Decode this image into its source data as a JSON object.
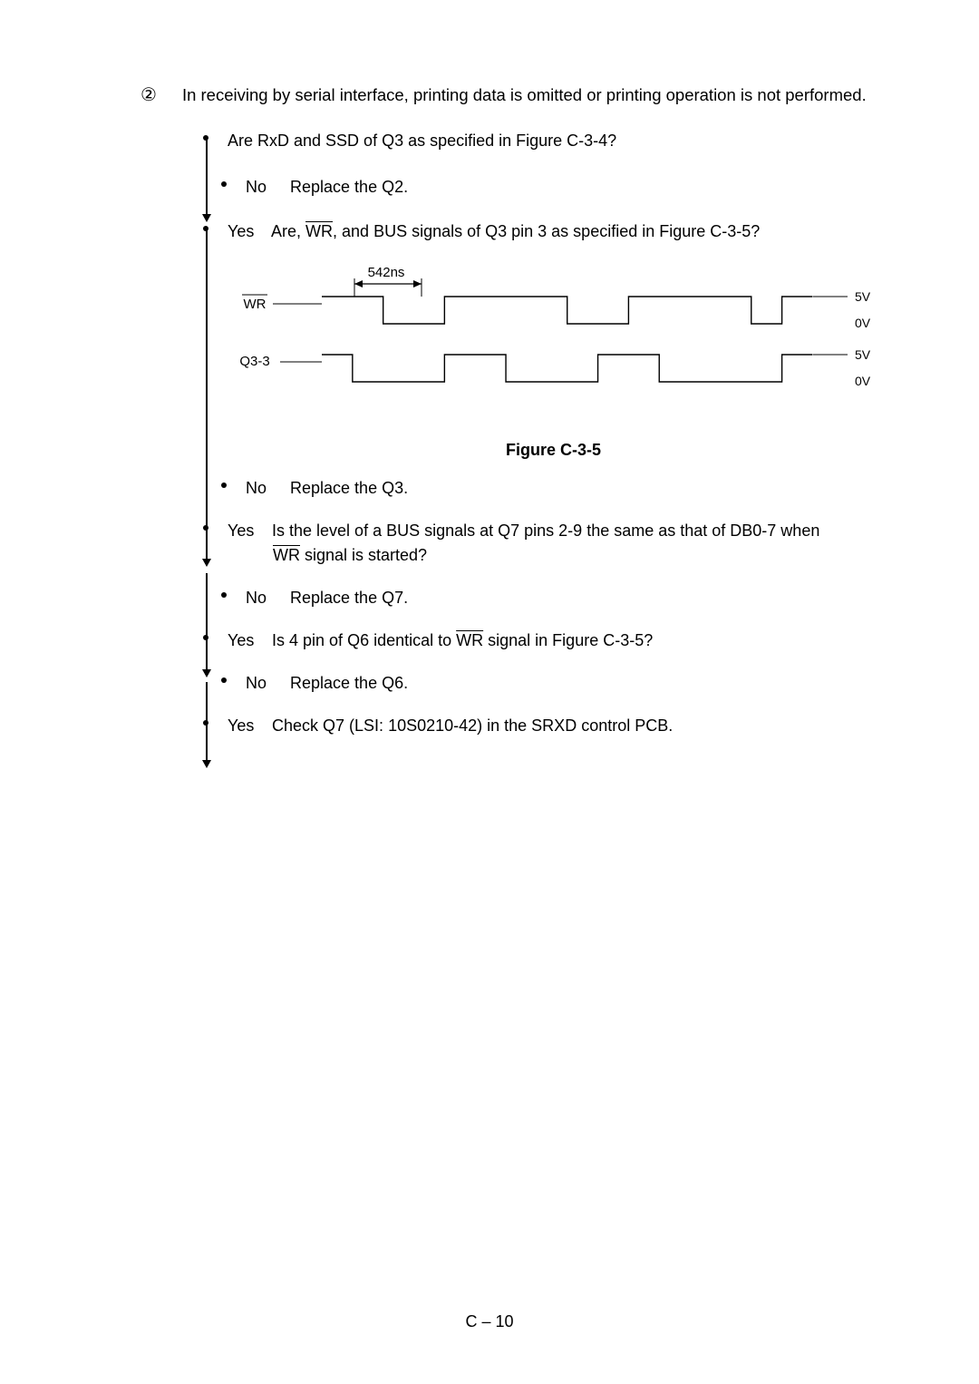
{
  "item_number": "②",
  "header": "In receiving by serial interface, printing data is omitted or printing operation is not performed.",
  "steps": {
    "q1": "Are RxD and SSD of Q3 as specified in Figure C-3-4?",
    "no1_label": "No",
    "no1_action": "Replace the Q2.",
    "yes1_label": "Yes",
    "yes1_text_before": "Are, ",
    "yes1_wr": "WR",
    "yes1_text_after": ", and BUS signals of Q3 pin 3 as specified in Figure C-3-5?",
    "no2_label": "No",
    "no2_action": "Replace the Q3.",
    "yes2_label": "Yes",
    "yes2_line1": "Is the level of a BUS signals at Q7 pins 2-9 the same as that of DB0-7 when",
    "yes2_wr": "WR",
    "yes2_line2_after": " signal is started?",
    "no3_label": "No",
    "no3_action": "Replace the Q7.",
    "yes3_label": "Yes",
    "yes3_before": "Is 4 pin of Q6 identical to ",
    "yes3_wr": "WR",
    "yes3_after": " signal in Figure C-3-5?",
    "no4_label": "No",
    "no4_action": "Replace the Q6.",
    "yes4_label": "Yes",
    "yes4_action": "Check Q7 (LSI: 10S0210-42) in the SRXD control PCB."
  },
  "figure": {
    "timing_label": "542ns",
    "signal1": "WR",
    "signal2": "Q3-3",
    "level_high": "5V",
    "level_low": "0V",
    "caption": "Figure C-3-5",
    "line_color": "#000000",
    "wr_pattern_x": [
      0,
      80,
      80,
      160,
      160,
      320,
      320,
      400,
      400,
      560,
      560,
      600,
      600,
      640
    ],
    "wr_pattern_y": [
      0,
      0,
      30,
      30,
      0,
      0,
      30,
      30,
      0,
      0,
      30,
      30,
      0,
      0
    ],
    "q3_pattern_x": [
      0,
      40,
      40,
      160,
      160,
      240,
      240,
      360,
      360,
      440,
      440,
      600,
      600,
      640
    ],
    "q3_pattern_y": [
      0,
      0,
      30,
      30,
      0,
      0,
      30,
      30,
      0,
      0,
      30,
      30,
      0,
      0
    ]
  },
  "page_number": "C – 10"
}
